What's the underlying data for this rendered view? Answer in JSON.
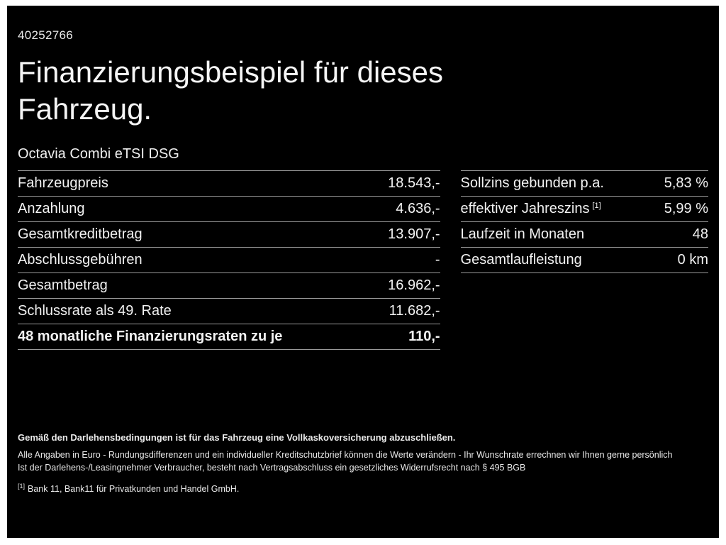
{
  "colors": {
    "frame": "#ffffff",
    "background": "#000000",
    "text": "#f2f2f2",
    "divider": "#9a9a9a"
  },
  "header": {
    "doc_id": "40252766",
    "title": "Finanzierungsbeispiel für dieses Fahrzeug.",
    "vehicle": "Octavia Combi eTSI DSG"
  },
  "left_table": {
    "rows": [
      {
        "label": "Fahrzeugpreis",
        "value": "18.543,-"
      },
      {
        "label": "Anzahlung",
        "value": "4.636,-"
      },
      {
        "label": "Gesamtkreditbetrag",
        "value": "13.907,-"
      },
      {
        "label": "Abschlussgebühren",
        "value": "-"
      },
      {
        "label": "Gesamtbetrag",
        "value": "16.962,-"
      },
      {
        "label": "Schlussrate als 49. Rate",
        "value": "11.682,-"
      },
      {
        "label": "48 monatliche Finanzierungsraten zu je",
        "value": "110,-"
      }
    ]
  },
  "right_table": {
    "rows": [
      {
        "label": "Sollzins gebunden p.a.",
        "sup": "",
        "value": "5,83 %"
      },
      {
        "label": "effektiver Jahreszins",
        "sup": "[1]",
        "value": "5,99 %"
      },
      {
        "label": "Laufzeit in Monaten",
        "sup": "",
        "value": "48"
      },
      {
        "label": "Gesamtlaufleistung",
        "sup": "",
        "value": "0 km"
      }
    ]
  },
  "footer": {
    "lead": "Gemäß den Darlehensbedingungen ist für das Fahrzeug eine Vollkaskoversicherung abzuschließen.",
    "line1": "Alle Angaben in Euro - Rundungsdifferenzen und ein individueller Kreditschutzbrief können die Werte verändern - Ihr Wunschrate errechnen wir Ihnen gerne persönlich",
    "line2": "Ist der Darlehens-/Leasingnehmer Verbraucher, besteht nach Vertragsabschluss ein gesetzliches Widerrufsrecht nach § 495 BGB",
    "footnote_marker": "[1]",
    "footnote_text": "Bank 11, Bank11 für Privatkunden und Handel GmbH."
  }
}
